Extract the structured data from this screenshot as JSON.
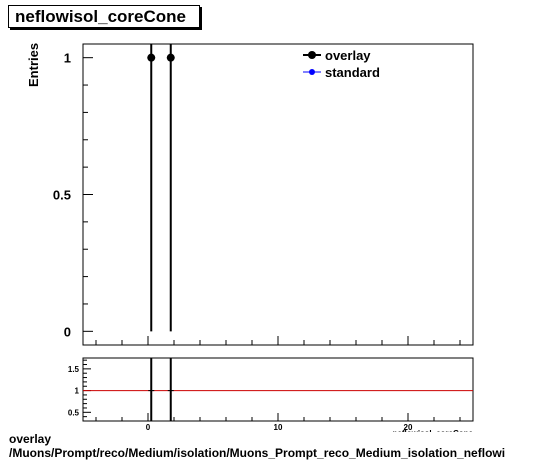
{
  "title": "neflowisol_coreCone",
  "footer": {
    "line1": "overlay",
    "line2": "/Muons/Prompt/reco/Medium/isolation/Muons_Prompt_reco_Medium_isolation_neflowi"
  },
  "chart_data": [
    {
      "type": "scatter",
      "ylabel": "Entries",
      "xlim": [
        -5,
        25
      ],
      "ylim": [
        -0.05,
        1.05
      ],
      "yticks": [
        0,
        0.5,
        1
      ],
      "ytick_labels": [
        "0",
        "0.5",
        "1"
      ],
      "series": [
        {
          "name": "overlay",
          "color": "#000000",
          "x": [
            0.25,
            1.75
          ],
          "y": [
            1,
            1
          ]
        },
        {
          "name": "standard",
          "color": "#0000ff",
          "x": [],
          "y": []
        }
      ],
      "legend": {
        "placement": "top-right",
        "entries": [
          "overlay",
          "standard"
        ]
      }
    },
    {
      "type": "line",
      "xlim": [
        -5,
        25
      ],
      "ylim": [
        0.3,
        1.75
      ],
      "yticks": [
        0.5,
        1,
        1.5
      ],
      "ytick_labels": [
        "0.5",
        "1",
        "1.5"
      ],
      "xticks": [
        0,
        10,
        20
      ],
      "xtick_labels": [
        "0",
        "10",
        "20"
      ],
      "xlabel": "neflowisol_coreCone",
      "reference_line": {
        "y": 1,
        "color": "#cc0000"
      },
      "points": {
        "x": [
          0.25,
          1.75
        ],
        "y": [
          1,
          1
        ]
      }
    }
  ]
}
